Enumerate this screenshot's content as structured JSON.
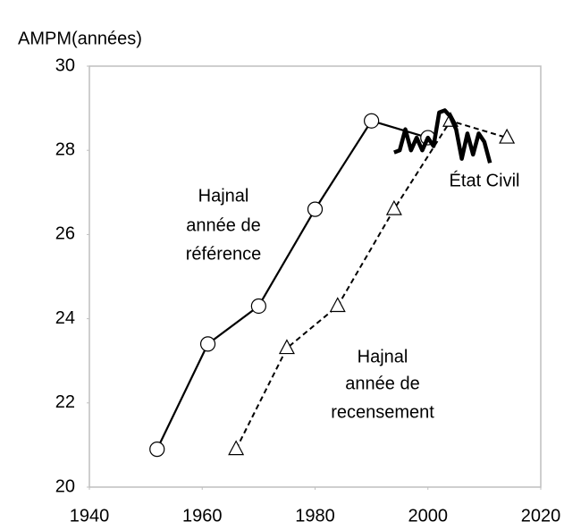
{
  "chart_data": {
    "type": "line",
    "ylabel": "AMPM(années)",
    "xlim": [
      1940,
      2020
    ],
    "xticks": [
      1940,
      1960,
      1980,
      2000,
      2020
    ],
    "ylim": [
      20,
      30
    ],
    "yticks": [
      20,
      22,
      24,
      26,
      28,
      30
    ],
    "grid": false,
    "series": [
      {
        "label": [
          "Hajnal",
          "année de",
          "référence"
        ],
        "color": "#000000",
        "dash": false,
        "width": 2.2,
        "marker": "circle",
        "x": [
          1952,
          1961,
          1970,
          1980,
          1990,
          2000
        ],
        "values": [
          20.9,
          23.4,
          24.3,
          26.6,
          28.7,
          28.3
        ]
      },
      {
        "label": [
          "Hajnal",
          "année de",
          "recensement"
        ],
        "color": "#000000",
        "dash": true,
        "width": 2,
        "marker": "triangle",
        "x": [
          1966,
          1975,
          1984,
          1994,
          2004,
          2014
        ],
        "values": [
          20.9,
          23.3,
          24.3,
          26.6,
          28.7,
          28.3
        ]
      },
      {
        "label": [
          "État Civil"
        ],
        "color": "#000000",
        "dash": false,
        "width": 4.5,
        "marker": "none",
        "x": [
          1994,
          1995,
          1996,
          1997,
          1998,
          1999,
          2000,
          2001,
          2002,
          2003,
          2004,
          2005,
          2006,
          2007,
          2008,
          2009,
          2010,
          2011
        ],
        "values": [
          27.95,
          28.0,
          28.5,
          28.0,
          28.3,
          28.0,
          28.3,
          28.1,
          28.9,
          28.95,
          28.8,
          28.5,
          27.8,
          28.4,
          27.9,
          28.4,
          28.2,
          27.7
        ]
      }
    ]
  }
}
